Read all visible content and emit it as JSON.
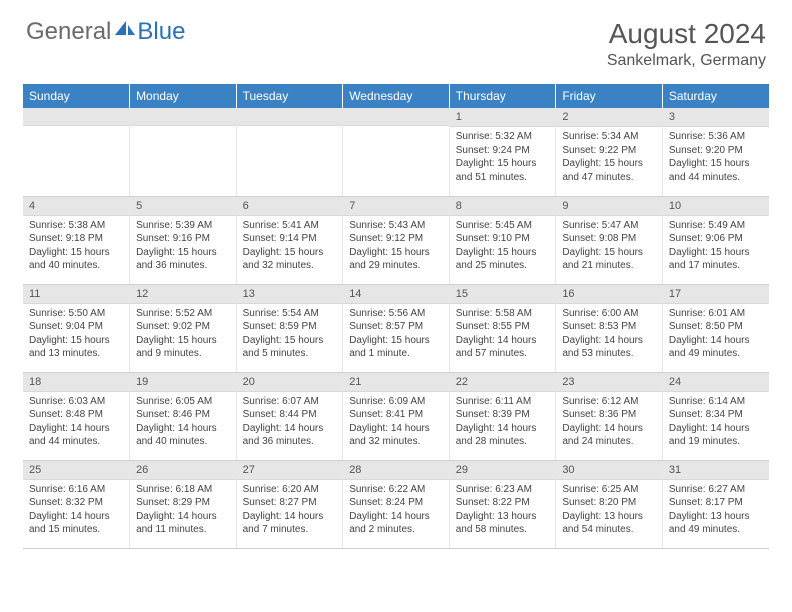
{
  "brand": {
    "general": "General",
    "blue": "Blue"
  },
  "title": {
    "month": "August 2024",
    "location": "Sankelmark, Germany"
  },
  "colors": {
    "header_bg": "#3b82c4",
    "header_text": "#ffffff",
    "daynum_bg": "#e6e6e6",
    "border": "#d0d0d0",
    "logo_gray": "#6a6a6a",
    "logo_blue": "#2a72b5"
  },
  "weekdays": [
    "Sunday",
    "Monday",
    "Tuesday",
    "Wednesday",
    "Thursday",
    "Friday",
    "Saturday"
  ],
  "weeks": [
    [
      null,
      null,
      null,
      null,
      {
        "n": "1",
        "sr": "5:32 AM",
        "ss": "9:24 PM",
        "dl": "15 hours and 51 minutes."
      },
      {
        "n": "2",
        "sr": "5:34 AM",
        "ss": "9:22 PM",
        "dl": "15 hours and 47 minutes."
      },
      {
        "n": "3",
        "sr": "5:36 AM",
        "ss": "9:20 PM",
        "dl": "15 hours and 44 minutes."
      }
    ],
    [
      {
        "n": "4",
        "sr": "5:38 AM",
        "ss": "9:18 PM",
        "dl": "15 hours and 40 minutes."
      },
      {
        "n": "5",
        "sr": "5:39 AM",
        "ss": "9:16 PM",
        "dl": "15 hours and 36 minutes."
      },
      {
        "n": "6",
        "sr": "5:41 AM",
        "ss": "9:14 PM",
        "dl": "15 hours and 32 minutes."
      },
      {
        "n": "7",
        "sr": "5:43 AM",
        "ss": "9:12 PM",
        "dl": "15 hours and 29 minutes."
      },
      {
        "n": "8",
        "sr": "5:45 AM",
        "ss": "9:10 PM",
        "dl": "15 hours and 25 minutes."
      },
      {
        "n": "9",
        "sr": "5:47 AM",
        "ss": "9:08 PM",
        "dl": "15 hours and 21 minutes."
      },
      {
        "n": "10",
        "sr": "5:49 AM",
        "ss": "9:06 PM",
        "dl": "15 hours and 17 minutes."
      }
    ],
    [
      {
        "n": "11",
        "sr": "5:50 AM",
        "ss": "9:04 PM",
        "dl": "15 hours and 13 minutes."
      },
      {
        "n": "12",
        "sr": "5:52 AM",
        "ss": "9:02 PM",
        "dl": "15 hours and 9 minutes."
      },
      {
        "n": "13",
        "sr": "5:54 AM",
        "ss": "8:59 PM",
        "dl": "15 hours and 5 minutes."
      },
      {
        "n": "14",
        "sr": "5:56 AM",
        "ss": "8:57 PM",
        "dl": "15 hours and 1 minute."
      },
      {
        "n": "15",
        "sr": "5:58 AM",
        "ss": "8:55 PM",
        "dl": "14 hours and 57 minutes."
      },
      {
        "n": "16",
        "sr": "6:00 AM",
        "ss": "8:53 PM",
        "dl": "14 hours and 53 minutes."
      },
      {
        "n": "17",
        "sr": "6:01 AM",
        "ss": "8:50 PM",
        "dl": "14 hours and 49 minutes."
      }
    ],
    [
      {
        "n": "18",
        "sr": "6:03 AM",
        "ss": "8:48 PM",
        "dl": "14 hours and 44 minutes."
      },
      {
        "n": "19",
        "sr": "6:05 AM",
        "ss": "8:46 PM",
        "dl": "14 hours and 40 minutes."
      },
      {
        "n": "20",
        "sr": "6:07 AM",
        "ss": "8:44 PM",
        "dl": "14 hours and 36 minutes."
      },
      {
        "n": "21",
        "sr": "6:09 AM",
        "ss": "8:41 PM",
        "dl": "14 hours and 32 minutes."
      },
      {
        "n": "22",
        "sr": "6:11 AM",
        "ss": "8:39 PM",
        "dl": "14 hours and 28 minutes."
      },
      {
        "n": "23",
        "sr": "6:12 AM",
        "ss": "8:36 PM",
        "dl": "14 hours and 24 minutes."
      },
      {
        "n": "24",
        "sr": "6:14 AM",
        "ss": "8:34 PM",
        "dl": "14 hours and 19 minutes."
      }
    ],
    [
      {
        "n": "25",
        "sr": "6:16 AM",
        "ss": "8:32 PM",
        "dl": "14 hours and 15 minutes."
      },
      {
        "n": "26",
        "sr": "6:18 AM",
        "ss": "8:29 PM",
        "dl": "14 hours and 11 minutes."
      },
      {
        "n": "27",
        "sr": "6:20 AM",
        "ss": "8:27 PM",
        "dl": "14 hours and 7 minutes."
      },
      {
        "n": "28",
        "sr": "6:22 AM",
        "ss": "8:24 PM",
        "dl": "14 hours and 2 minutes."
      },
      {
        "n": "29",
        "sr": "6:23 AM",
        "ss": "8:22 PM",
        "dl": "13 hours and 58 minutes."
      },
      {
        "n": "30",
        "sr": "6:25 AM",
        "ss": "8:20 PM",
        "dl": "13 hours and 54 minutes."
      },
      {
        "n": "31",
        "sr": "6:27 AM",
        "ss": "8:17 PM",
        "dl": "13 hours and 49 minutes."
      }
    ]
  ],
  "labels": {
    "sunrise": "Sunrise:",
    "sunset": "Sunset:",
    "daylight": "Daylight:"
  }
}
